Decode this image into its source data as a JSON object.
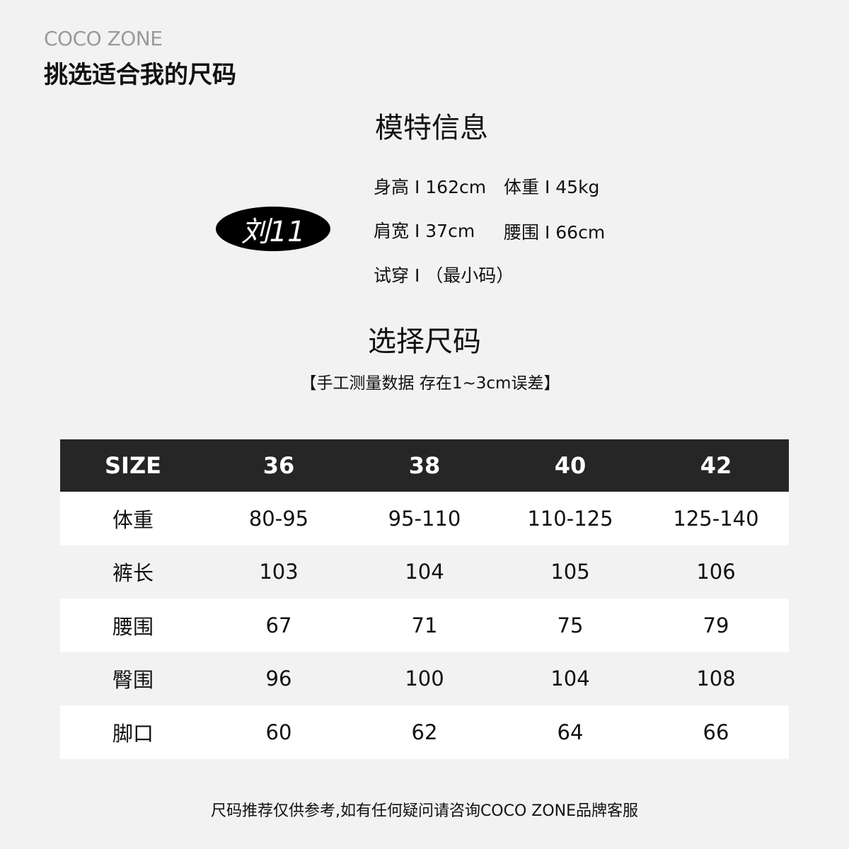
{
  "header": {
    "brand": "COCO ZONE",
    "title": "挑选适合我的尺码"
  },
  "model": {
    "section_title": "模特信息",
    "name": "刘11",
    "height": "身高 I 162cm",
    "weight": "体重 I 45kg",
    "shoulder": "肩宽 I 37cm",
    "waist": "腰围 I 66cm",
    "tryon": "试穿 I （最小码）"
  },
  "size_section": {
    "title": "选择尺码",
    "note": "【手工测量数据 存在1~3cm误差】"
  },
  "table": {
    "headers": [
      "SIZE",
      "36",
      "38",
      "40",
      "42"
    ],
    "rows": [
      [
        "体重",
        "80-95",
        "95-110",
        "110-125",
        "125-140"
      ],
      [
        "裤长",
        "103",
        "104",
        "105",
        "106"
      ],
      [
        "腰围",
        "67",
        "71",
        "75",
        "79"
      ],
      [
        "臀围",
        "96",
        "100",
        "104",
        "108"
      ],
      [
        "脚口",
        "60",
        "62",
        "64",
        "66"
      ]
    ]
  },
  "footer": "尺码推荐仅供参考,如有任何疑问请咨询COCO ZONE品牌客服"
}
